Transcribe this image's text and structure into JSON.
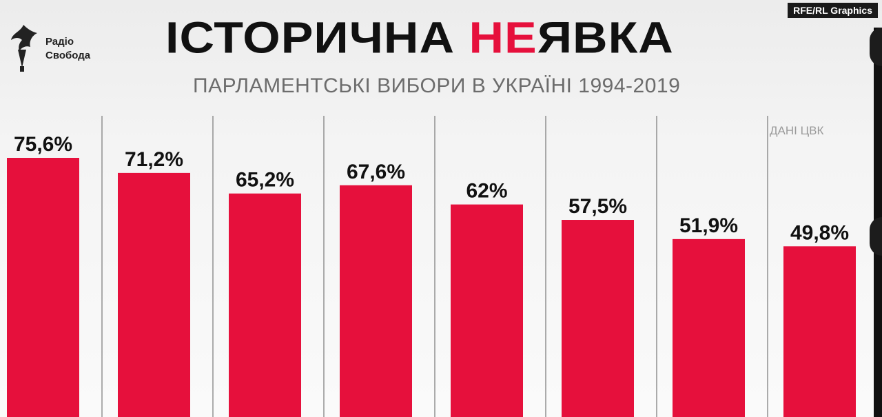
{
  "header": {
    "title_main": "ІСТОРИЧНА ",
    "title_highlight": "НЕ",
    "title_rest": "ЯВКА",
    "subtitle": "ПАРЛАМЕНТСЬКІ ВИБОРИ В УКРАЇНІ 1994-2019",
    "source": "ДАНІ ЦВК",
    "brand_tag": "RFE/RL Graphics",
    "logo_line1": "Радіо",
    "logo_line2": "Свобода"
  },
  "colors": {
    "bar": "#e6103c",
    "highlight": "#e6103c",
    "text": "#111111",
    "divider": "#777777"
  },
  "chart_data": {
    "type": "bar",
    "title": "ІСТОРИЧНА НЕЯВКА",
    "subtitle": "ПАРЛАМЕНТСЬКІ ВИБОРИ В УКРАЇНІ 1994-2019",
    "categories": [],
    "values": [
      75.6,
      71.2,
      65.2,
      67.6,
      62,
      57.5,
      51.9,
      49.8
    ],
    "labels": [
      "75,6%",
      "71,2%",
      "65,2%",
      "67,6%",
      "62%",
      "57,5%",
      "51,9%",
      "49,8%"
    ],
    "unit": "%",
    "xlabel": "",
    "ylabel": "",
    "grid": false,
    "legend": "none"
  }
}
